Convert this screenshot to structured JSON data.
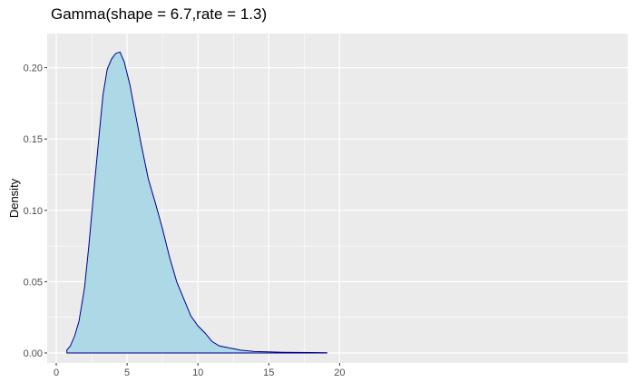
{
  "chart_data": {
    "type": "area",
    "title": "Gamma(shape = 6.7,rate = 1.3)",
    "xlabel": "",
    "ylabel": "Density",
    "xlim": [
      0,
      20
    ],
    "ylim": [
      0,
      0.22
    ],
    "x_ticks": [
      0,
      5,
      10,
      15,
      20
    ],
    "x_tick_labels": [
      "0",
      "5",
      "10",
      "15",
      "20"
    ],
    "y_ticks": [
      0.0,
      0.05,
      0.1,
      0.15,
      0.2
    ],
    "y_tick_labels": [
      "0.00",
      "0.05",
      "0.10",
      "0.15",
      "0.20"
    ],
    "grid": true,
    "legend": "none",
    "colors": {
      "fill": "#add8e6",
      "line": "#00008b",
      "panel": "#ebebeb",
      "grid": "#ffffff"
    },
    "series": [
      {
        "x": [
          0.75,
          1.0,
          1.3,
          1.6,
          2.0,
          2.3,
          2.6,
          3.0,
          3.3,
          3.6,
          3.9,
          4.2,
          4.5,
          4.8,
          5.2,
          5.6,
          6.0,
          6.5,
          7.0,
          7.5,
          8.0,
          8.5,
          9.0,
          9.5,
          10.0,
          10.5,
          11.0,
          11.5,
          12.0,
          12.5,
          13.0,
          14.0,
          15.0,
          16.0,
          17.0,
          18.0,
          19.1
        ],
        "values": [
          0.002,
          0.005,
          0.012,
          0.022,
          0.046,
          0.075,
          0.108,
          0.15,
          0.181,
          0.199,
          0.206,
          0.21,
          0.211,
          0.204,
          0.188,
          0.167,
          0.146,
          0.122,
          0.105,
          0.087,
          0.067,
          0.05,
          0.038,
          0.026,
          0.019,
          0.014,
          0.008,
          0.005,
          0.004,
          0.003,
          0.002,
          0.001,
          0.0008,
          0.0005,
          0.0004,
          0.0003,
          0.0002
        ]
      }
    ]
  }
}
